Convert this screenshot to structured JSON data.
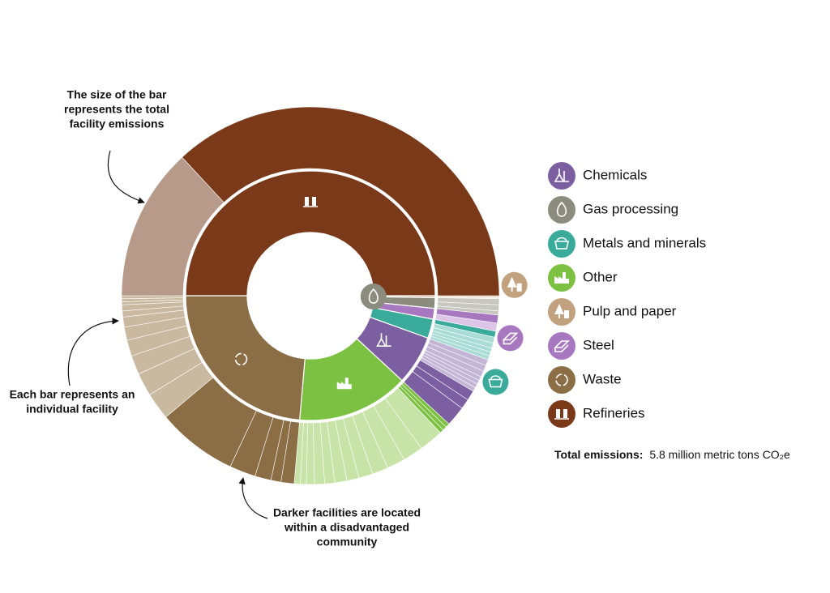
{
  "chart_data": {
    "type": "sunburst",
    "annotations": [
      [
        "The size of the bar",
        "represents the total",
        "facility emissions"
      ],
      [
        "Each bar represents an",
        "individual facility"
      ],
      [
        "Darker facilities are located",
        "within a disadvantaged",
        "community"
      ]
    ],
    "total_title": "Total emissions:",
    "total": {
      "value": 5.8,
      "label": "5.8 million metric tons CO₂e"
    },
    "series": [
      {
        "name": "Chemicals",
        "color": "#7b5fa0",
        "light_color": "#c3b5d6",
        "values": [
          0.03,
          0.03,
          0.03,
          0.02,
          0.02,
          0.02,
          0.02,
          0.05,
          0.05,
          0.1
        ],
        "disadvantaged": [
          false,
          false,
          false,
          false,
          false,
          false,
          false,
          true,
          true,
          true
        ]
      },
      {
        "name": "Gas processing",
        "color": "#8b8c7e",
        "light_color": "#c8c8c0",
        "values": [
          0.03,
          0.03,
          0.02
        ],
        "disadvantaged": [
          false,
          false,
          false
        ]
      },
      {
        "name": "Metals and minerals",
        "color": "#3aab9b",
        "light_color": "#a8dcd4",
        "values": [
          0.03,
          0.03,
          0.025,
          0.02,
          0.02,
          0.02
        ],
        "disadvantaged": [
          true,
          false,
          false,
          false,
          false,
          false
        ]
      },
      {
        "name": "Other",
        "color": "#7dc142",
        "light_color": "#c7e3a8",
        "values": [
          0.02,
          0.02,
          0.02,
          0.12,
          0.1,
          0.09,
          0.08,
          0.07,
          0.06,
          0.06,
          0.05,
          0.05,
          0.04,
          0.03,
          0.03
        ],
        "disadvantaged": [
          true,
          true,
          true,
          false,
          false,
          false,
          false,
          false,
          false,
          false,
          false,
          false,
          false,
          false,
          false
        ]
      },
      {
        "name": "Pulp and paper",
        "color": "#c2a27e",
        "light_color": "#e7d9c7",
        "values": [
          0.01,
          0.005
        ],
        "disadvantaged": [
          false,
          false
        ]
      },
      {
        "name": "Steel",
        "color": "#a777c0",
        "light_color": "#dcc5e6",
        "values": [
          0.04,
          0.04
        ],
        "disadvantaged": [
          true,
          false
        ]
      },
      {
        "name": "Waste",
        "color": "#8b6e45",
        "light_color": "#c9b9a0",
        "values": [
          0.065,
          0.05,
          0.08,
          0.13,
          0.4,
          0.135,
          0.115,
          0.095,
          0.08,
          0.065,
          0.05,
          0.03,
          0.03,
          0.015,
          0.015,
          0.015
        ],
        "disadvantaged": [
          true,
          true,
          true,
          true,
          true,
          false,
          false,
          false,
          false,
          false,
          false,
          false,
          false,
          false,
          false,
          false
        ]
      },
      {
        "name": "Refineries",
        "color": "#7a3a1a",
        "light_color": "#b89a8a",
        "values": [
          0.76,
          2.14
        ],
        "disadvantaged": [
          false,
          true
        ]
      }
    ]
  }
}
